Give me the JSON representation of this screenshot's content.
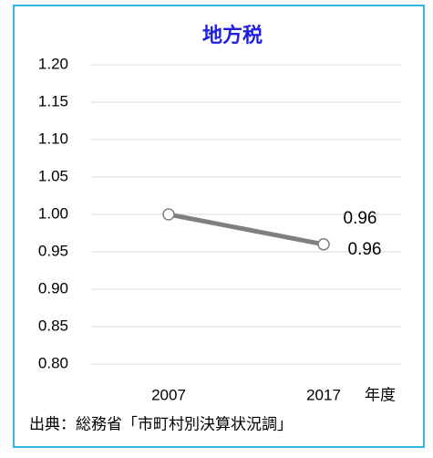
{
  "chart_data": {
    "type": "line",
    "title": "地方税",
    "categories": [
      "2007",
      "2017"
    ],
    "x_label": "年度",
    "source": "出典：総務省「市町村別決算状況調」",
    "series": [
      {
        "color": "#7f7f7f",
        "values": [
          1,
          0.96
        ]
      },
      {
        "color": "#c0504d",
        "values": [
          1,
          0.96
        ]
      }
    ],
    "ylim": [
      0.8,
      1.2
    ],
    "yticks": [
      {
        "value": 0.8,
        "label": "0.80"
      },
      0.85,
      {
        "value": 0.9,
        "label": "0.90"
      },
      0.95,
      {
        "value": 1,
        "label": "1.00"
      },
      1.05,
      {
        "value": 1.1,
        "label": "1.10"
      },
      1.15,
      {
        "value": 1.2,
        "label": "1.20"
      }
    ],
    "grid": true
  }
}
